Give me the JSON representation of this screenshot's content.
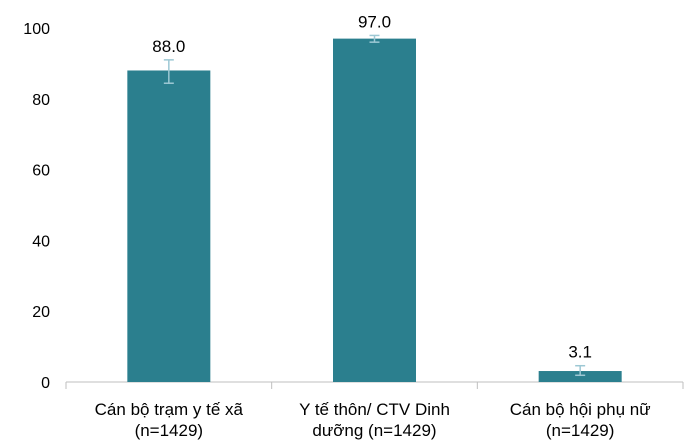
{
  "chart_data": {
    "type": "bar",
    "title": "",
    "xlabel": "",
    "ylabel": "",
    "ylim": [
      0,
      100
    ],
    "yticks": [
      0,
      20,
      40,
      60,
      80,
      100
    ],
    "grid": false,
    "categories": [
      [
        "Cán bộ trạm y tế xã",
        "(n=1429)"
      ],
      [
        "Y tế thôn/ CTV Dinh",
        "dưỡng (n=1429)"
      ],
      [
        "Cán bộ hội phụ nữ",
        "(n=1429)"
      ]
    ],
    "values": [
      88.0,
      97.0,
      3.1
    ],
    "value_labels": [
      "88.0",
      "97.0",
      "3.1"
    ],
    "error_bars": [
      {
        "low": 84.4,
        "high": 91.0
      },
      {
        "low": 96.0,
        "high": 97.9
      },
      {
        "low": 1.9,
        "high": 4.6
      }
    ],
    "colors": {
      "bar": "#2b7f8e",
      "error_bar": "#9dc8d4",
      "axis": "#bfbfbf"
    }
  }
}
